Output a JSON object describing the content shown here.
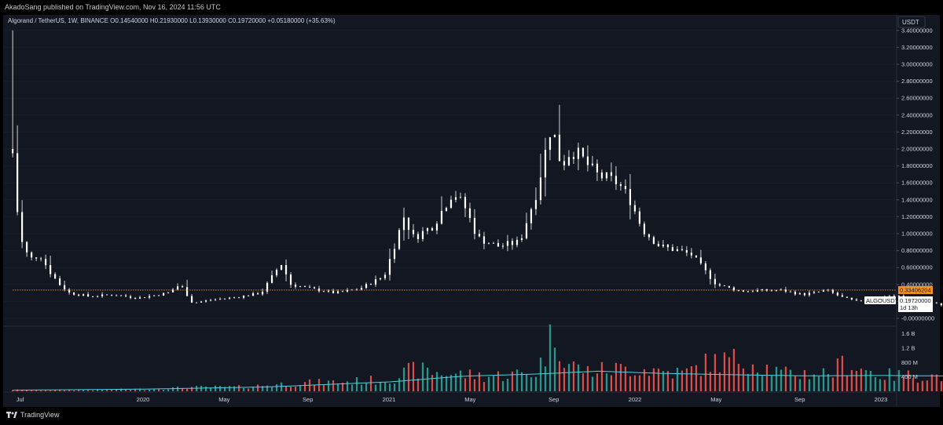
{
  "header": {
    "published_text": "AkadoSang published on TradingView.com, Nov 16, 2024 11:56 UTC"
  },
  "legend": {
    "symbol": "Algorand / TetherUS, 1W, BINANCE",
    "open": "O0.14540000",
    "high": "H0.21930000",
    "low": "L0.13930000",
    "close": "C0.19720000",
    "change": "+0.05180000 (+35.63%)"
  },
  "price_scale": {
    "currency": "USDT",
    "ticks": [
      "3.40000000",
      "3.20000000",
      "3.00000000",
      "2.80000000",
      "2.60000000",
      "2.40000000",
      "2.20000000",
      "2.00000000",
      "1.80000000",
      "1.60000000",
      "1.40000000",
      "1.20000000",
      "1.00000000",
      "0.80000000",
      "0.60000000",
      "0.40000000",
      "0.20000000",
      "-0.00000000"
    ],
    "tick_values": [
      3.4,
      3.2,
      3.0,
      2.8,
      2.6,
      2.4,
      2.2,
      2.0,
      1.8,
      1.6,
      1.4,
      1.2,
      1.0,
      0.8,
      0.6,
      0.4,
      0.2,
      0.0
    ],
    "horizontal_line_label": "0.33406204",
    "horizontal_line_value": 0.33406204,
    "symbol_tag": "ALGOUSDT",
    "last_price": "0.19720000",
    "countdown": "1d 13h"
  },
  "volume_scale": {
    "ticks": [
      "1.6 B",
      "1.2 B",
      "800 M",
      "400 M"
    ],
    "tick_values": [
      1600,
      1200,
      800,
      400
    ]
  },
  "time_axis": {
    "labels": [
      "Jul",
      "2020",
      "May",
      "Sep",
      "2021",
      "May",
      "Sep",
      "2022",
      "May",
      "Sep",
      "2023",
      "May",
      "Sep",
      "2024",
      "May",
      "Sep",
      "2025",
      "May",
      "Sep",
      "2026"
    ],
    "label_positions": [
      2019.5,
      2020.0,
      2020.33,
      2020.67,
      2021.0,
      2021.33,
      2021.67,
      2022.0,
      2022.33,
      2022.67,
      2023.0,
      2023.33,
      2023.67,
      2024.0,
      2024.33,
      2024.67,
      2025.0,
      2025.33,
      2025.67,
      2026.0
    ]
  },
  "colors": {
    "background": "#131722",
    "up_candle": "#ffffff",
    "down_candle": "#ffffff",
    "volume_up": "#26a69a",
    "volume_down": "#ef5350",
    "volume_ma": "#4dd0e1",
    "hline": "#f7931a",
    "grid": "#2a2e39",
    "text": "#d1d4dc"
  },
  "chart_data": {
    "type": "candlestick",
    "interval": "1W",
    "x_unit": "year",
    "price_key_points": [
      [
        2019.47,
        3.4
      ],
      [
        2019.49,
        1.95
      ],
      [
        2019.51,
        1.2
      ],
      [
        2019.53,
        0.85
      ],
      [
        2019.56,
        0.7
      ],
      [
        2019.6,
        0.75
      ],
      [
        2019.64,
        0.55
      ],
      [
        2019.68,
        0.4
      ],
      [
        2019.72,
        0.3
      ],
      [
        2019.8,
        0.26
      ],
      [
        2019.9,
        0.28
      ],
      [
        2020.0,
        0.24
      ],
      [
        2020.12,
        0.3
      ],
      [
        2020.17,
        0.4
      ],
      [
        2020.22,
        0.18
      ],
      [
        2020.3,
        0.22
      ],
      [
        2020.4,
        0.25
      ],
      [
        2020.5,
        0.3
      ],
      [
        2020.58,
        0.65
      ],
      [
        2020.62,
        0.4
      ],
      [
        2020.7,
        0.35
      ],
      [
        2020.8,
        0.3
      ],
      [
        2020.9,
        0.35
      ],
      [
        2021.0,
        0.5
      ],
      [
        2021.08,
        1.2
      ],
      [
        2021.12,
        0.95
      ],
      [
        2021.2,
        1.1
      ],
      [
        2021.28,
        1.5
      ],
      [
        2021.33,
        1.3
      ],
      [
        2021.38,
        0.95
      ],
      [
        2021.46,
        0.85
      ],
      [
        2021.55,
        0.9
      ],
      [
        2021.62,
        1.5
      ],
      [
        2021.68,
        2.3
      ],
      [
        2021.72,
        1.8
      ],
      [
        2021.76,
        2.0
      ],
      [
        2021.8,
        1.9
      ],
      [
        2021.86,
        1.7
      ],
      [
        2021.95,
        1.6
      ],
      [
        2022.0,
        1.4
      ],
      [
        2022.05,
        1.05
      ],
      [
        2022.12,
        0.85
      ],
      [
        2022.2,
        0.8
      ],
      [
        2022.25,
        0.75
      ],
      [
        2022.35,
        0.4
      ],
      [
        2022.45,
        0.32
      ],
      [
        2022.55,
        0.33
      ],
      [
        2022.62,
        0.33
      ],
      [
        2022.7,
        0.28
      ],
      [
        2022.8,
        0.33
      ],
      [
        2022.86,
        0.25
      ],
      [
        2022.92,
        0.2
      ],
      [
        2023.0,
        0.25
      ],
      [
        2023.08,
        0.27
      ],
      [
        2023.16,
        0.22
      ],
      [
        2023.3,
        0.14
      ],
      [
        2023.45,
        0.12
      ],
      [
        2023.55,
        0.1
      ],
      [
        2023.7,
        0.1
      ],
      [
        2023.8,
        0.11
      ],
      [
        2023.92,
        0.17
      ],
      [
        2024.0,
        0.25
      ],
      [
        2024.1,
        0.21
      ],
      [
        2024.2,
        0.29
      ],
      [
        2024.27,
        0.22
      ],
      [
        2024.35,
        0.2
      ],
      [
        2024.5,
        0.14
      ],
      [
        2024.6,
        0.12
      ],
      [
        2024.75,
        0.13
      ],
      [
        2024.82,
        0.12
      ],
      [
        2024.87,
        0.197
      ]
    ],
    "last_candle": {
      "open": 0.1454,
      "high": 0.2193,
      "low": 0.1393,
      "close": 0.1972
    },
    "horizontal_line": 0.33406204,
    "volume_key_points": [
      [
        2019.47,
        40
      ],
      [
        2019.6,
        30
      ],
      [
        2019.8,
        40
      ],
      [
        2020.0,
        60
      ],
      [
        2020.2,
        110
      ],
      [
        2020.4,
        120
      ],
      [
        2020.6,
        220
      ],
      [
        2020.8,
        260
      ],
      [
        2021.0,
        330
      ],
      [
        2021.1,
        600
      ],
      [
        2021.2,
        520
      ],
      [
        2021.4,
        420
      ],
      [
        2021.6,
        520
      ],
      [
        2021.68,
        1800
      ],
      [
        2021.72,
        800
      ],
      [
        2021.8,
        560
      ],
      [
        2022.0,
        650
      ],
      [
        2022.2,
        500
      ],
      [
        2022.3,
        800
      ],
      [
        2022.45,
        900
      ],
      [
        2022.6,
        480
      ],
      [
        2022.8,
        520
      ],
      [
        2022.85,
        800
      ],
      [
        2023.0,
        450
      ],
      [
        2023.2,
        420
      ],
      [
        2023.4,
        450
      ],
      [
        2023.6,
        420
      ],
      [
        2023.8,
        450
      ],
      [
        2024.0,
        550
      ],
      [
        2024.1,
        520
      ],
      [
        2024.2,
        680
      ],
      [
        2024.27,
        800
      ],
      [
        2024.35,
        520
      ],
      [
        2024.5,
        350
      ],
      [
        2024.7,
        250
      ],
      [
        2024.82,
        300
      ],
      [
        2024.87,
        1280
      ]
    ],
    "volume_ma_key_points": [
      [
        2019.47,
        30
      ],
      [
        2020.0,
        60
      ],
      [
        2020.5,
        120
      ],
      [
        2021.0,
        260
      ],
      [
        2021.3,
        420
      ],
      [
        2021.6,
        480
      ],
      [
        2021.85,
        560
      ],
      [
        2022.1,
        500
      ],
      [
        2022.4,
        460
      ],
      [
        2022.7,
        430
      ],
      [
        2023.0,
        440
      ],
      [
        2023.4,
        420
      ],
      [
        2023.8,
        440
      ],
      [
        2024.1,
        460
      ],
      [
        2024.4,
        420
      ],
      [
        2024.7,
        300
      ],
      [
        2024.87,
        330
      ]
    ]
  }
}
